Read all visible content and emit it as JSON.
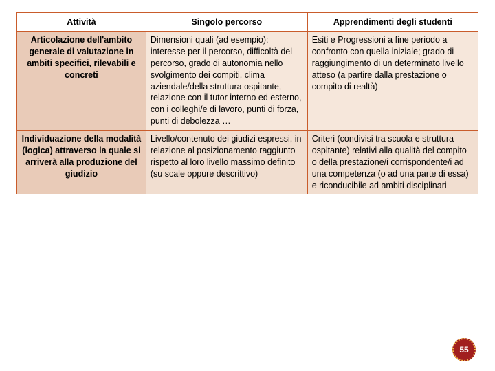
{
  "colors": {
    "border": "#c95c2b",
    "header_bg": "#ffffff",
    "rowhead_bg": "#e9cbb8",
    "body_a_bg": "#f6e7db",
    "body_b_bg": "#f1ded0",
    "badge_bg": "#a11f1f",
    "badge_ring": "#f3c04a",
    "badge_text": "#ffffff"
  },
  "table": {
    "headers": {
      "c1": "Attività",
      "c2": "Singolo  percorso",
      "c3": "Apprendimenti  degli studenti"
    },
    "rows": [
      {
        "head": "Articolazione dell'ambito generale di valutazione in ambiti specifici, rilevabili e concreti",
        "c2": "Dimensioni quali (ad esempio): interesse per il percorso, difficoltà del percorso, grado di autonomia nello svolgimento dei compiti, clima aziendale/della struttura ospitante, relazione con il tutor interno ed esterno, con i colleghi/e di lavoro, punti di forza, punti di debolezza …",
        "c3": "Esiti e Progressioni a fine periodo a confronto con quella iniziale; grado di raggiungimento di un determinato livello atteso (a partire dalla prestazione o compito di realtà)"
      },
      {
        "head": "Individuazione della modalità (logica) attraverso la quale si arriverà alla produzione del giudizio",
        "c2": "Livello/contenuto dei giudizi espressi, in relazione al posizionamento raggiunto rispetto al loro livello massimo definito (su scale oppure descrittivo)",
        "c3": "Criteri (condivisi tra scuola e struttura ospitante) relativi alla qualità del compito o della prestazione/i corrispondente/i ad una competenza (o ad una parte di essa) e riconducibile ad ambiti disciplinari"
      }
    ]
  },
  "page_number": "55"
}
